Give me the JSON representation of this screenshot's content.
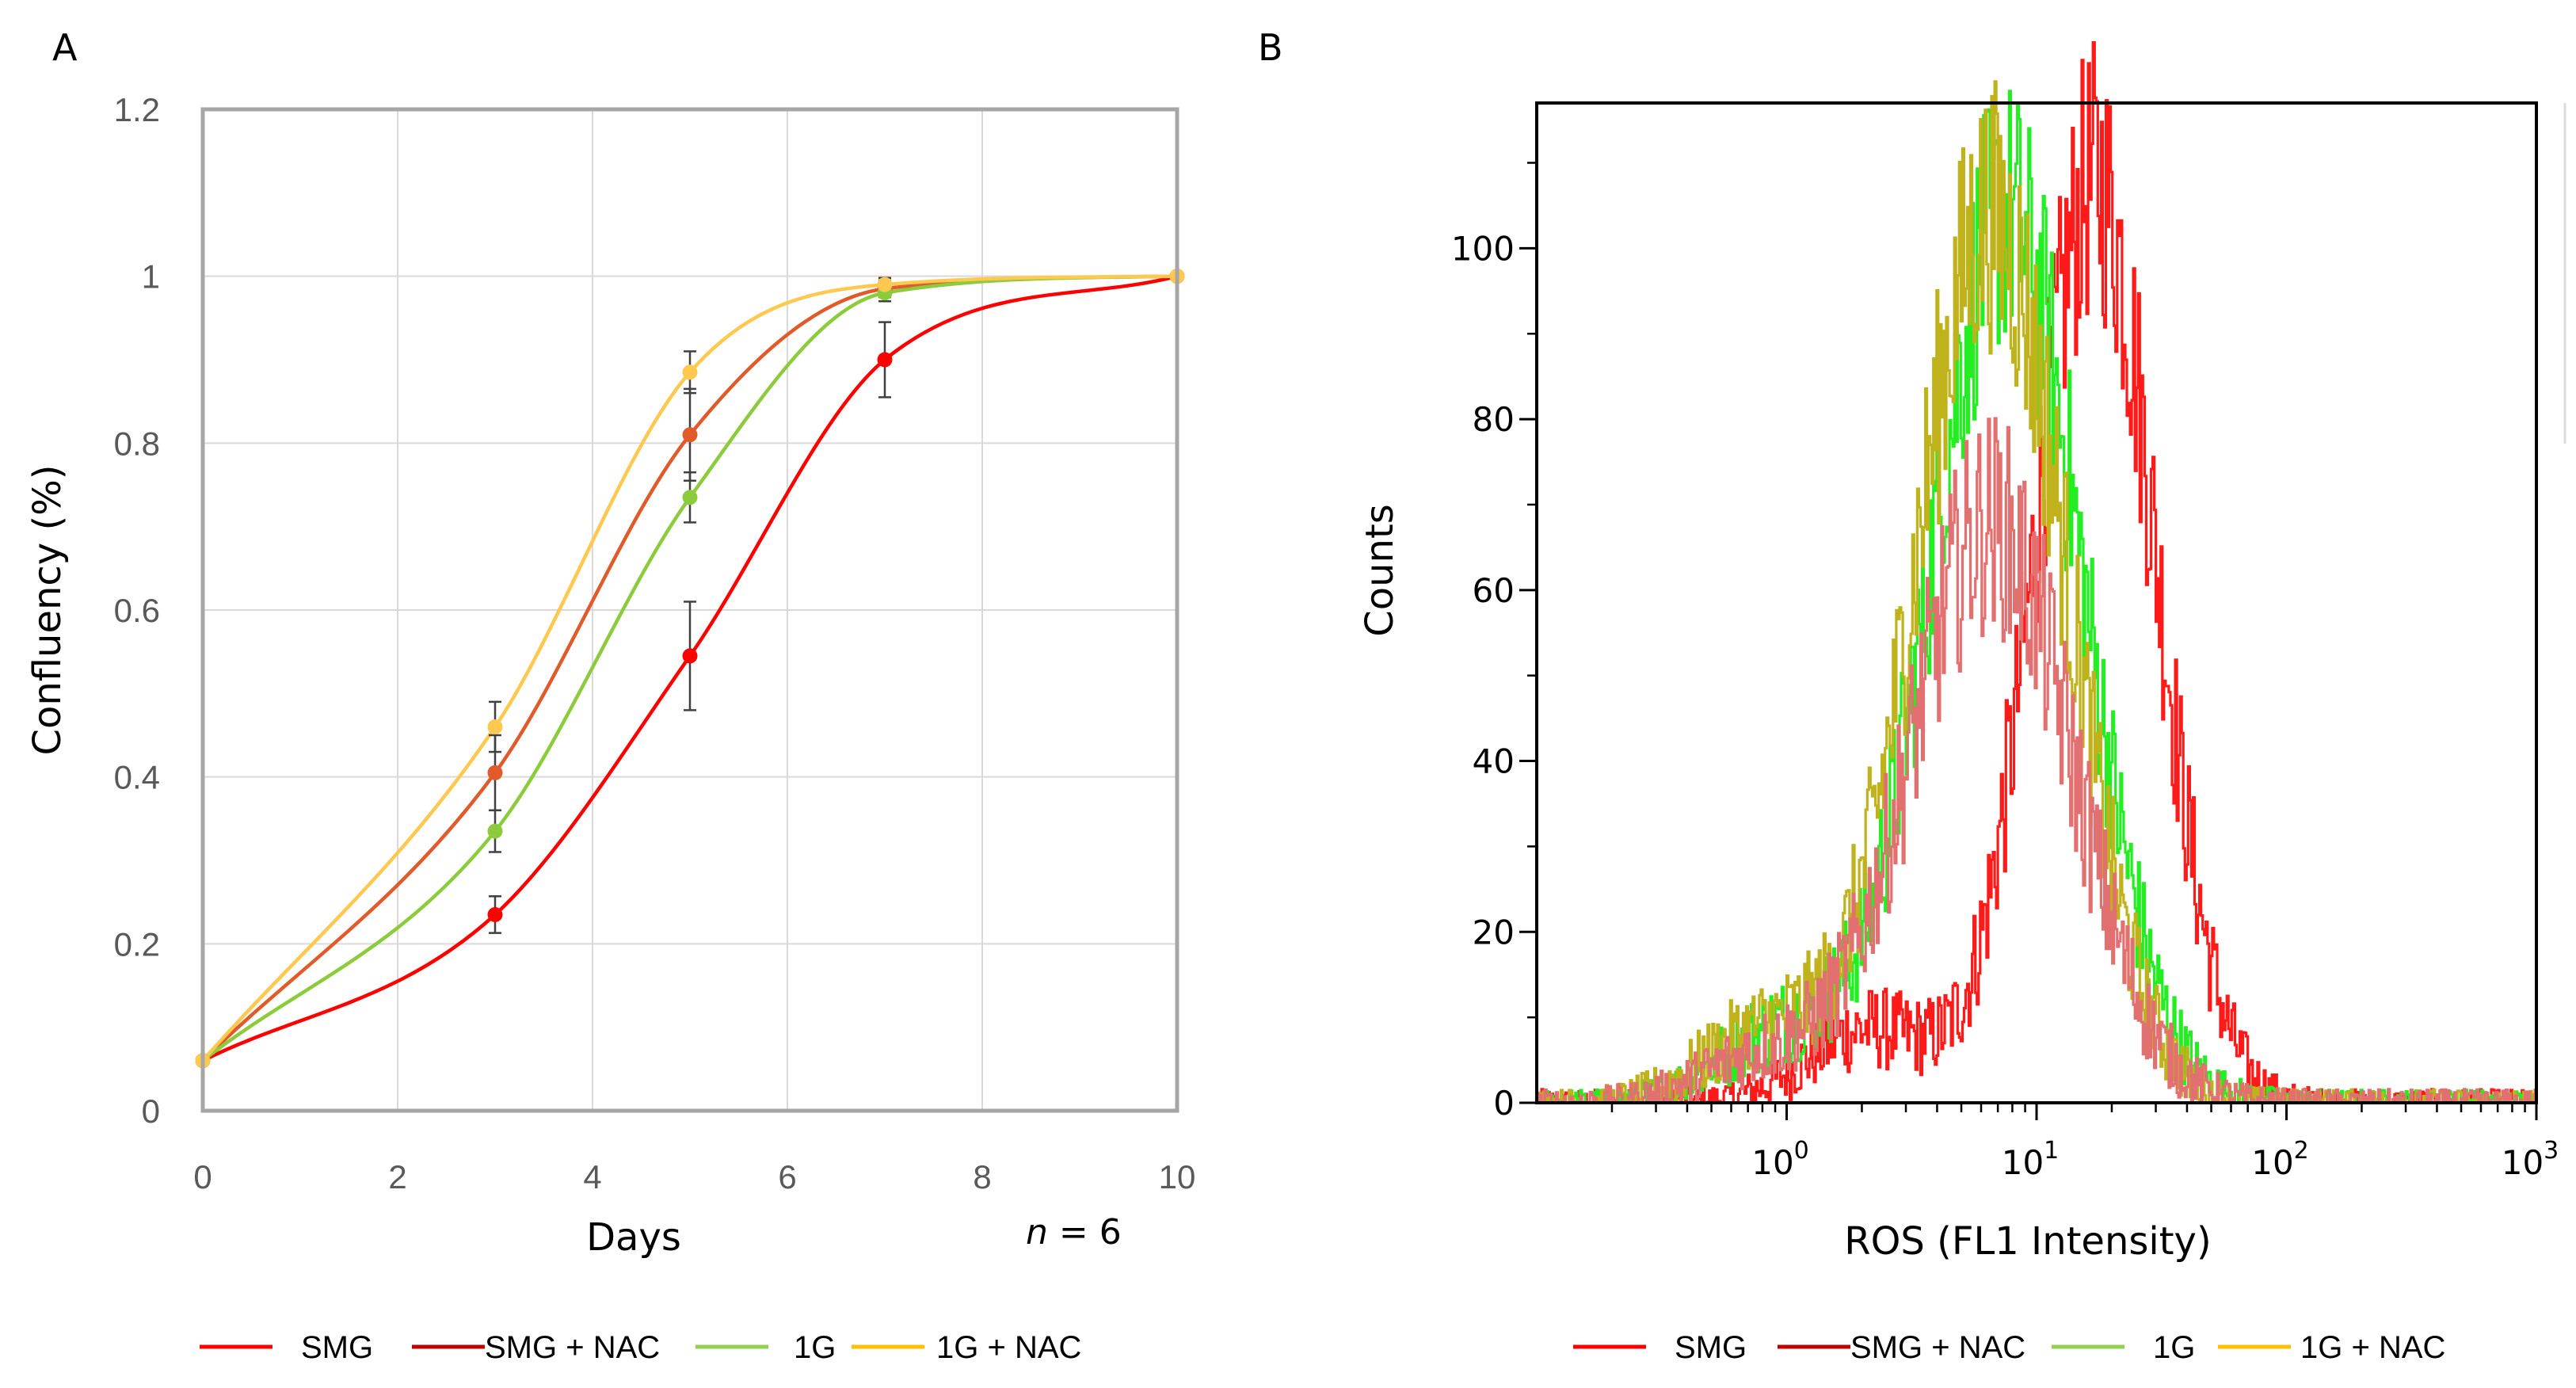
{
  "chart_data": [
    {
      "panel": "A",
      "type": "line",
      "title": "",
      "xlabel": "Days",
      "ylabel": "Confluency (%)",
      "annotation": "n = 6",
      "annotation_italic": "n",
      "annotation_rest": " = 6",
      "xlim": [
        0,
        10
      ],
      "ylim": [
        0,
        1.2
      ],
      "xticks": [
        "0",
        "2",
        "4",
        "6",
        "8",
        "10"
      ],
      "yticks": [
        "0",
        "0.2",
        "0.4",
        "0.6",
        "0.8",
        "1",
        "1.2"
      ],
      "grid": true,
      "legend_position": "bottom",
      "x": [
        0,
        3,
        5,
        7,
        10
      ],
      "series": [
        {
          "name": "SMG",
          "color": "#ff0000",
          "values": [
            0.06,
            0.235,
            0.545,
            0.9,
            1.0
          ],
          "errors": [
            0,
            0.022,
            0.065,
            0.045,
            0
          ]
        },
        {
          "name": "SMG + NAC",
          "color": "#e15a2a",
          "values": [
            0.06,
            0.405,
            0.81,
            0.985,
            1.0
          ],
          "errors": [
            0,
            0.045,
            0.055,
            0.01,
            0
          ]
        },
        {
          "name": "1G",
          "color": "#8ccc3c",
          "values": [
            0.06,
            0.335,
            0.735,
            0.98,
            1.0
          ],
          "errors": [
            0,
            0.025,
            0.03,
            0.01,
            0
          ]
        },
        {
          "name": "1G + NAC",
          "color": "#ffc84f",
          "values": [
            0.06,
            0.46,
            0.885,
            0.99,
            1.0
          ],
          "errors": [
            0,
            0.03,
            0.025,
            0.008,
            0
          ]
        }
      ],
      "legend": [
        {
          "label": "SMG",
          "color": "#ff0000"
        },
        {
          "label": "SMG + NAC",
          "color": "#c00000"
        },
        {
          "label": "1G",
          "color": "#92d050"
        },
        {
          "label": "1G + NAC",
          "color": "#ffc000"
        }
      ]
    },
    {
      "panel": "B",
      "type": "line",
      "title": "",
      "xlabel": "ROS (FL1 Intensity)",
      "ylabel": "Counts",
      "xscale": "log",
      "xlim": [
        0.1,
        1000
      ],
      "ylim": [
        0,
        117
      ],
      "xticks": [
        {
          "base": "10",
          "exp": "0"
        },
        {
          "base": "10",
          "exp": "1"
        },
        {
          "base": "10",
          "exp": "2"
        },
        {
          "base": "10",
          "exp": "3"
        }
      ],
      "yticks": [
        "0",
        "20",
        "40",
        "60",
        "80",
        "100"
      ],
      "grid": false,
      "legend_position": "bottom",
      "series": [
        {
          "name": "SMG",
          "color": "#ff1a1a",
          "peak_x": 17,
          "peak_count": 108,
          "width_decades": 0.24
        },
        {
          "name": "SMG + NAC",
          "color": "#e37070",
          "peak_x": 6.5,
          "peak_count": 68,
          "width_decades": 0.32
        },
        {
          "name": "1G",
          "color": "#22ee22",
          "peak_x": 7.5,
          "peak_count": 104,
          "width_decades": 0.3
        },
        {
          "name": "1G + NAC",
          "color": "#bfb21a",
          "peak_x": 6.5,
          "peak_count": 104,
          "width_decades": 0.3
        }
      ],
      "legend": [
        {
          "label": "SMG",
          "color": "#ff0000"
        },
        {
          "label": "SMG + NAC",
          "color": "#c00000"
        },
        {
          "label": "1G",
          "color": "#92d050"
        },
        {
          "label": "1G + NAC",
          "color": "#ffc000"
        }
      ]
    }
  ]
}
